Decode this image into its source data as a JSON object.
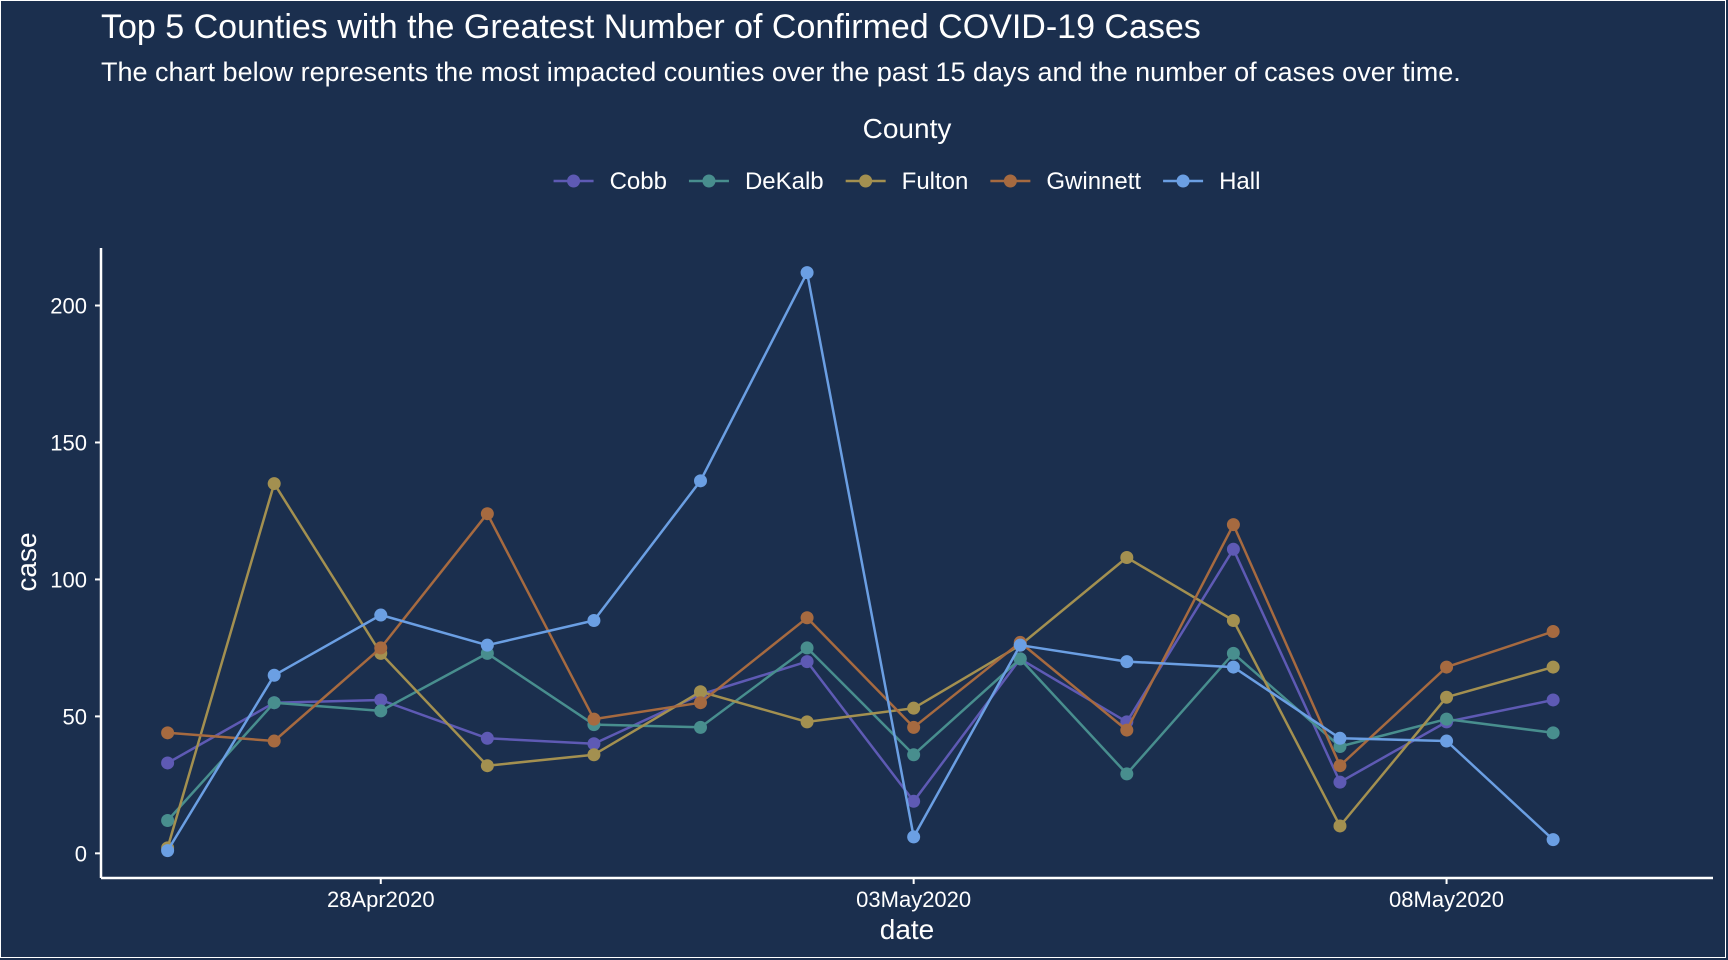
{
  "chart_data": {
    "type": "line",
    "title": "Top 5 Counties with the Greatest Number of Confirmed COVID-19 Cases",
    "subtitle": "The chart below represents the most impacted counties over the past 15 days and the number of cases over time.",
    "xlabel": "date",
    "ylabel": "case",
    "legend_title": "County",
    "legend_position": "top",
    "grid": false,
    "x": [
      "2020-04-26",
      "2020-04-27",
      "2020-04-28",
      "2020-04-29",
      "2020-04-30",
      "2020-05-01",
      "2020-05-02",
      "2020-05-03",
      "2020-05-04",
      "2020-05-05",
      "2020-05-06",
      "2020-05-07",
      "2020-05-08",
      "2020-05-09"
    ],
    "x_ticks": [
      {
        "date": "2020-04-28",
        "label": "28Apr2020"
      },
      {
        "date": "2020-05-03",
        "label": "03May2020"
      },
      {
        "date": "2020-05-08",
        "label": "08May2020"
      }
    ],
    "x_range": [
      "2020-04-25T09:00",
      "2020-05-10T12:00"
    ],
    "y_ticks": [
      0,
      50,
      100,
      150,
      200
    ],
    "ylim": [
      -9,
      221
    ],
    "series": [
      {
        "name": "Cobb",
        "color": "#5e5ab4",
        "values": [
          33,
          55,
          56,
          42,
          40,
          58,
          70,
          19,
          71,
          48,
          111,
          26,
          48,
          56
        ]
      },
      {
        "name": "DeKalb",
        "color": "#488e8e",
        "values": [
          12,
          55,
          52,
          73,
          47,
          46,
          75,
          36,
          71,
          29,
          73,
          39,
          49,
          44
        ]
      },
      {
        "name": "Fulton",
        "color": "#a39050",
        "values": [
          2,
          135,
          73,
          32,
          36,
          59,
          48,
          53,
          76,
          108,
          85,
          10,
          57,
          68
        ]
      },
      {
        "name": "Gwinnett",
        "color": "#a66a40",
        "values": [
          44,
          41,
          75,
          124,
          49,
          55,
          86,
          46,
          77,
          45,
          120,
          32,
          68,
          81
        ]
      },
      {
        "name": "Hall",
        "color": "#6b9fe3",
        "values": [
          1,
          65,
          87,
          76,
          85,
          136,
          212,
          6,
          76,
          70,
          68,
          42,
          41,
          5
        ]
      }
    ]
  }
}
